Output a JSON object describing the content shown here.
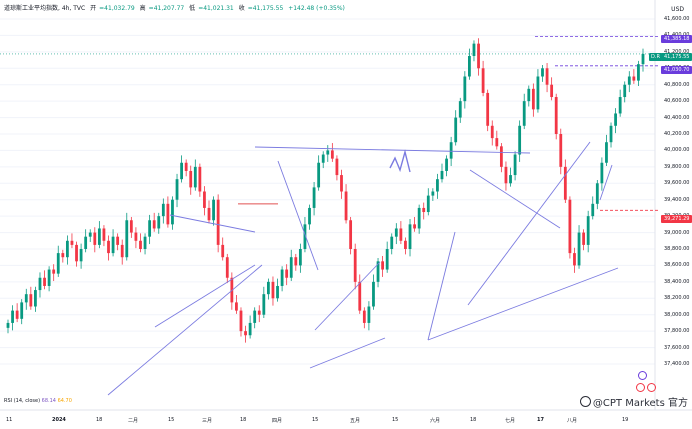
{
  "header": {
    "symbol": "道琼斯工业平均指数, 4h, TVC",
    "open_label": "开",
    "open": "=41,032.79",
    "high_label": "高",
    "high": "=41,207.77",
    "low_label": "低",
    "low": "=41,021.31",
    "close_label": "收",
    "close": "=41,175.55",
    "change": "+142.48 (+0.35%)"
  },
  "currency": "USD",
  "price_axis": [
    "41,600.00",
    "41,400.00",
    "41,200.00",
    "41,000.00",
    "40,800.00",
    "40,600.00",
    "40,400.00",
    "40,200.00",
    "40,000.00",
    "39,800.00",
    "39,600.00",
    "39,400.00",
    "39,200.00",
    "39,000.00",
    "38,800.00",
    "38,600.00",
    "38,400.00",
    "38,200.00",
    "38,000.00",
    "37,800.00",
    "37,600.00",
    "37,400.00"
  ],
  "price_tags": {
    "top": "41,385.18",
    "dr_badge": "D.R",
    "current": "41,175.55",
    "mid": "41,030.70",
    "low": "39,271.29"
  },
  "time_axis": [
    {
      "label": "11",
      "bold": false
    },
    {
      "label": "2024",
      "bold": true
    },
    {
      "label": "18",
      "bold": false
    },
    {
      "label": "二月",
      "bold": false
    },
    {
      "label": "15",
      "bold": false
    },
    {
      "label": "三月",
      "bold": false
    },
    {
      "label": "18",
      "bold": false
    },
    {
      "label": "四月",
      "bold": false
    },
    {
      "label": "15",
      "bold": false
    },
    {
      "label": "五月",
      "bold": false
    },
    {
      "label": "15",
      "bold": false
    },
    {
      "label": "六月",
      "bold": false
    },
    {
      "label": "18",
      "bold": false
    },
    {
      "label": "七月",
      "bold": false
    },
    {
      "label": "17",
      "bold": true
    },
    {
      "label": "八月",
      "bold": false
    },
    {
      "label": "19",
      "bold": false
    }
  ],
  "rsi": {
    "label": "RSI (14, close)",
    "value1": "68.14",
    "value2": "64.70"
  },
  "watermark": "@CPT Markets 官方",
  "colors": {
    "up": "#089981",
    "down": "#f23645",
    "trendline": "#7b7be0",
    "horizontal": "#e05050",
    "current": "#089981",
    "purple": "#6a3cdc"
  },
  "chart_data": {
    "type": "candlestick",
    "ylim": [
      37400,
      41600
    ],
    "close": [
      37900,
      38050,
      37950,
      38150,
      38250,
      38100,
      38300,
      38450,
      38350,
      38550,
      38500,
      38750,
      38700,
      38900,
      38850,
      38650,
      38800,
      38950,
      39000,
      38850,
      39050,
      38900,
      38750,
      38950,
      38850,
      38700,
      39150,
      39000,
      38900,
      38800,
      38950,
      39150,
      39050,
      39200,
      39350,
      39100,
      39400,
      39650,
      39850,
      39750,
      39550,
      39800,
      39500,
      39300,
      39150,
      39400,
      38850,
      38700,
      38450,
      38150,
      38050,
      37800,
      37750,
      37900,
      38050,
      38000,
      38250,
      38400,
      38200,
      38350,
      38550,
      38450,
      38700,
      38600,
      38800,
      39100,
      39300,
      39550,
      39850,
      39950,
      40000,
      39900,
      39700,
      39500,
      39150,
      38800,
      38400,
      38050,
      37900,
      38100,
      38400,
      38650,
      38550,
      38800,
      38950,
      39050,
      38900,
      38800,
      39100,
      39050,
      39300,
      39250,
      39450,
      39500,
      39650,
      39750,
      39900,
      40100,
      40400,
      40600,
      40900,
      41150,
      41300,
      41000,
      40700,
      40300,
      40150,
      40050,
      39800,
      39600,
      39700,
      39950,
      40300,
      40600,
      40750,
      40500,
      40900,
      41000,
      40800,
      40650,
      40200,
      39800,
      39400,
      38750,
      38600,
      39000,
      38850,
      39200,
      39350,
      39600,
      39850,
      40100,
      40300,
      40450,
      40650,
      40800,
      40900,
      40850,
      41050,
      41175
    ]
  }
}
